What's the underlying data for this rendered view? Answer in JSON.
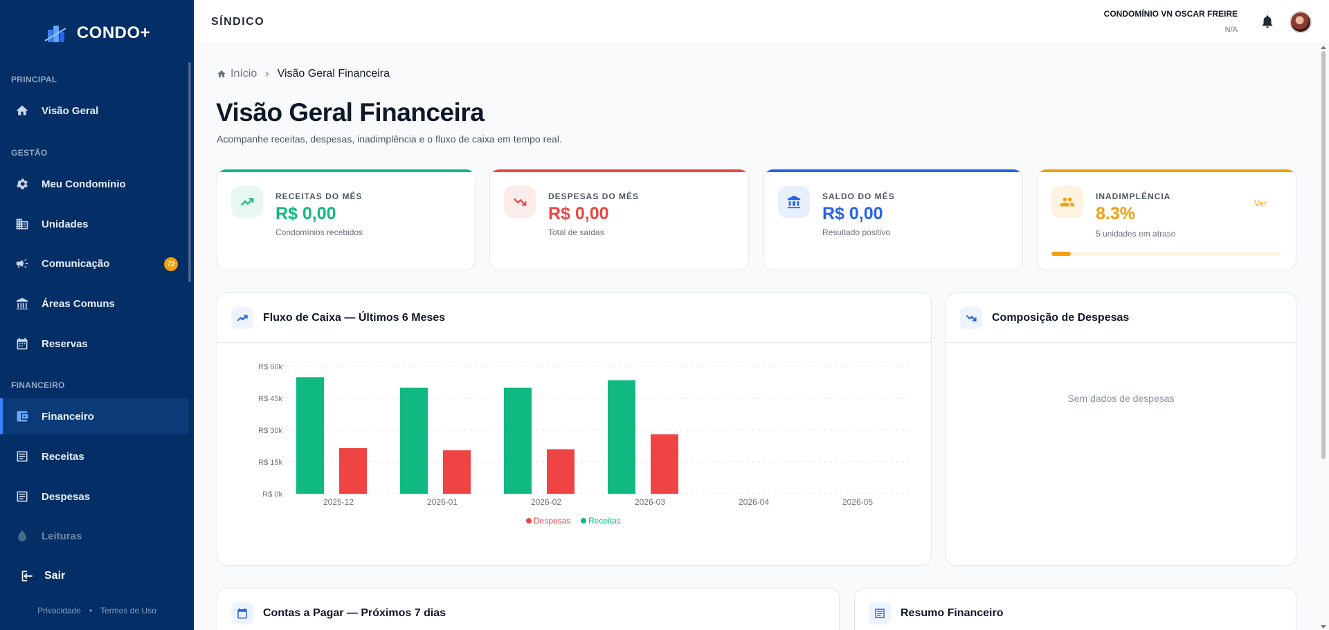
{
  "app": {
    "brand": "CONDO+"
  },
  "sidebar": {
    "sections": {
      "principal": "PRINCIPAL",
      "gestao": "GESTÃO",
      "financeiro": "FINANCEIRO"
    },
    "items": [
      {
        "label": "Visão Geral",
        "icon": "home-icon"
      },
      {
        "label": "Meu Condomínio",
        "icon": "gear-icon"
      },
      {
        "label": "Unidades",
        "icon": "building-icon"
      },
      {
        "label": "Comunicação",
        "icon": "megaphone-icon",
        "badge": "72"
      },
      {
        "label": "Áreas Comuns",
        "icon": "commons-icon"
      },
      {
        "label": "Reservas",
        "icon": "calendar-icon"
      },
      {
        "label": "Financeiro",
        "icon": "wallet-icon",
        "active": true
      },
      {
        "label": "Receitas",
        "icon": "receipt-icon"
      },
      {
        "label": "Despesas",
        "icon": "receipt-icon"
      },
      {
        "label": "Leituras",
        "icon": "water-drop-icon",
        "disabled": true
      }
    ],
    "logout": "Sair",
    "footer": {
      "privacy": "Privacidade",
      "separator": "•",
      "terms": "Termos de Uso"
    }
  },
  "topbar": {
    "role": "SÍNDICO",
    "condo_name": "CONDOMÍNIO VN OSCAR FREIRE",
    "condo_sub": "N/A"
  },
  "breadcrumb": {
    "home": "Início",
    "separator": "›",
    "current": "Visão Geral Financeira"
  },
  "page": {
    "title": "Visão Geral Financeira",
    "subtitle": "Acompanhe receitas, despesas, inadimplência e o fluxo de caixa em tempo real."
  },
  "cards": [
    {
      "label": "RECEITAS DO MÊS",
      "value": "R$ 0,00",
      "sub": "Condomínios recebidos",
      "color": "#10b981",
      "icon": "trending-up-icon"
    },
    {
      "label": "DESPESAS DO MÊS",
      "value": "R$ 0,00",
      "sub": "Total de saídas",
      "color": "#ef4444",
      "icon": "trending-down-icon"
    },
    {
      "label": "SALDO DO MÊS",
      "value": "R$ 0,00",
      "sub": "Resultado positivo",
      "color": "#2563eb",
      "icon": "bank-icon"
    },
    {
      "label": "INADIMPLÊNCIA",
      "value": "8.3%",
      "sub": "5 unidades em atraso",
      "color": "#f59e0b",
      "icon": "users-icon",
      "link": "Ver",
      "progress": 0.083
    }
  ],
  "panels": {
    "cashflow_title": "Fluxo de Caixa — Últimos 6 Meses",
    "composition_title": "Composição de Despesas",
    "composition_empty": "Sem dados de despesas",
    "payables_title": "Contas a Pagar — Próximos 7 dias",
    "summary_title": "Resumo Financeiro"
  },
  "chart_data": {
    "type": "bar",
    "categories": [
      "2025-12",
      "2026-01",
      "2026-02",
      "2026-03",
      "2026-04",
      "2026-05"
    ],
    "series": [
      {
        "name": "Receitas",
        "color": "#10b981",
        "values": [
          55000,
          50000,
          50000,
          53500,
          null,
          null
        ]
      },
      {
        "name": "Despesas",
        "color": "#ef4444",
        "values": [
          21500,
          20500,
          21000,
          28000,
          null,
          null
        ]
      }
    ],
    "yticks": [
      "R$ 0k",
      "R$ 15k",
      "R$ 30k",
      "R$ 45k",
      "R$ 60k"
    ],
    "ylim": [
      0,
      60000
    ],
    "legend_order": [
      "Despesas",
      "Receitas"
    ],
    "legend_position": "bottom-center",
    "grid": true
  }
}
